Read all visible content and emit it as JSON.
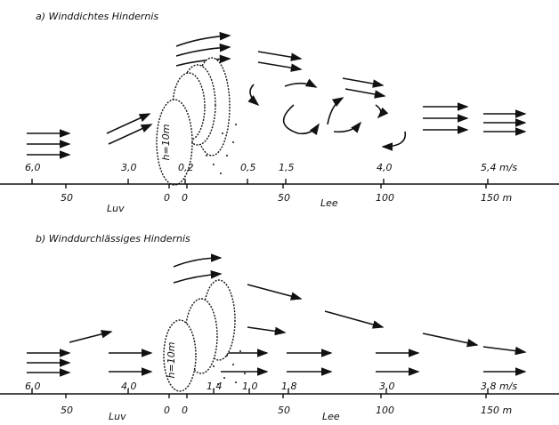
{
  "panels": [
    {
      "title": "a) Winddichtes Hindernis",
      "speeds": [
        "6,0",
        "3,0",
        "0,2",
        "0,5",
        "1,5",
        "4,0",
        "5,4 m/s"
      ],
      "distances": [
        "50",
        "0",
        "0",
        "50",
        "100",
        "150 m"
      ],
      "windward": "Luv",
      "leeward": "Lee",
      "height": "h=10m"
    },
    {
      "title": "b) Winddurchlässiges Hindernis",
      "speeds": [
        "6,0",
        "4,0",
        "1,4",
        "1,0",
        "1,8",
        "3,0",
        "3,8 m/s"
      ],
      "distances": [
        "50",
        "0",
        "0",
        "50",
        "100",
        "150 m"
      ],
      "windward": "Luv",
      "leeward": "Lee",
      "height": "h=10m"
    }
  ]
}
